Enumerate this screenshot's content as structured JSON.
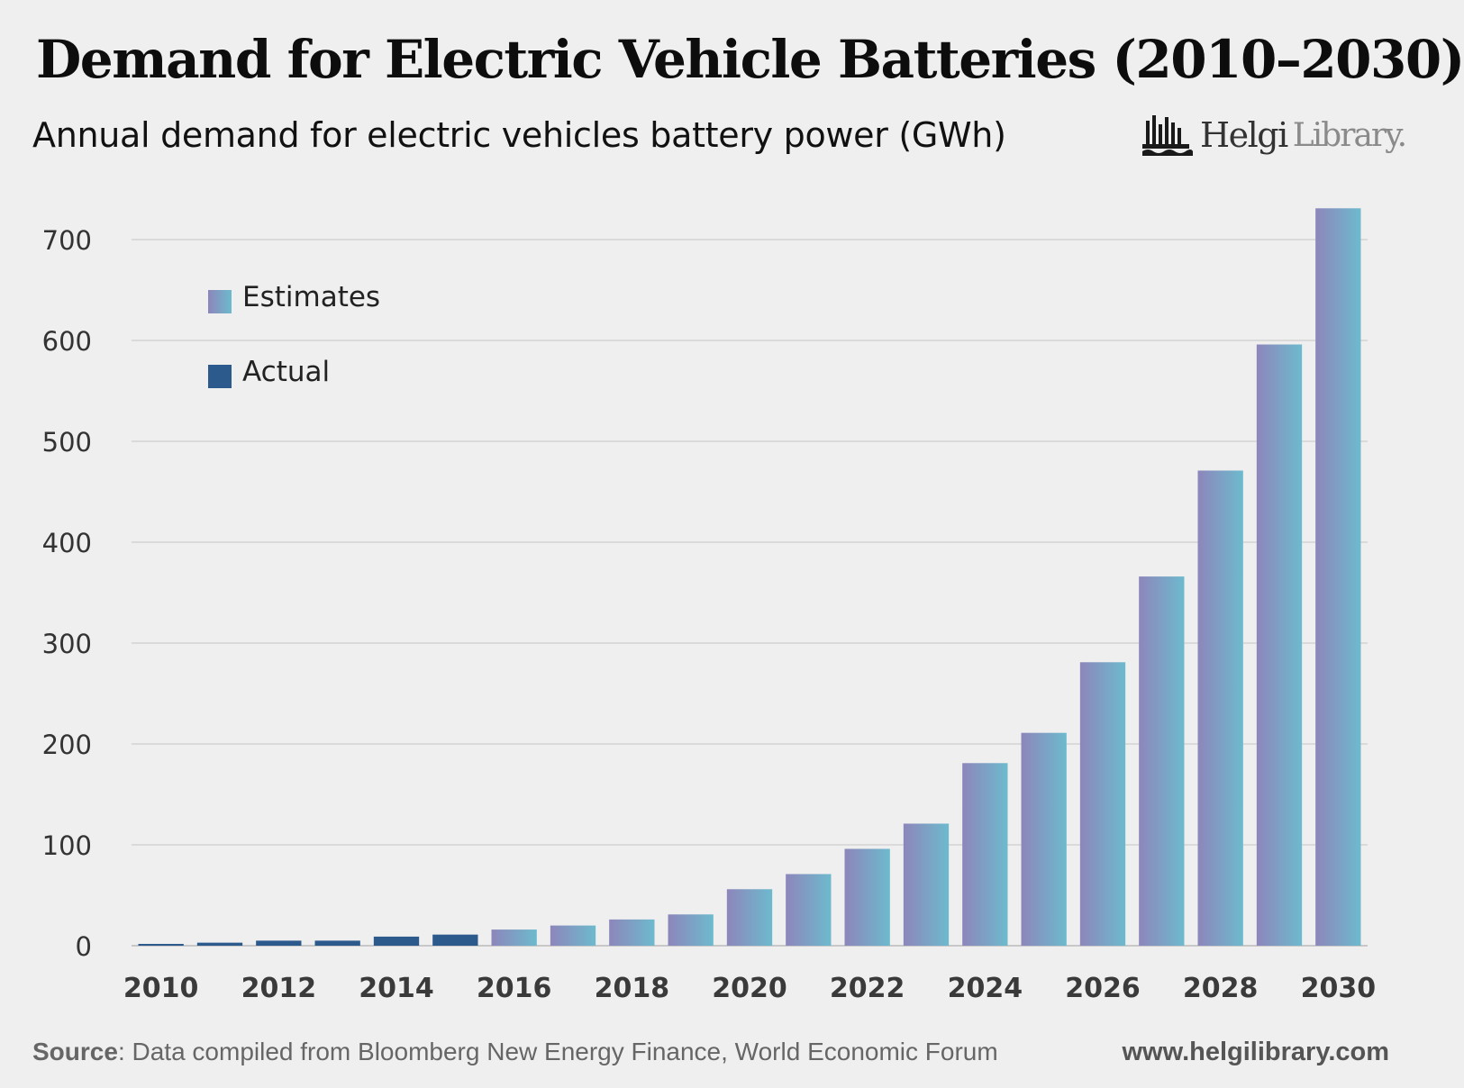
{
  "header": {
    "title": "Demand for Electric Vehicle Batteries (2010–2030)",
    "subtitle": "Annual demand for electric vehicles battery power (GWh)"
  },
  "brand": {
    "part1": "Helgi",
    "part2": "Library."
  },
  "footer": {
    "source_label": "Source",
    "source_text": ": Data compiled from Bloomberg New Energy Finance, World Economic Forum",
    "url": "www.helgilibrary.com"
  },
  "colors": {
    "actual": "#2c5a8c",
    "estimate_left": "#8d86bb",
    "estimate_right": "#6dbacd",
    "grid": "#d4d4d4",
    "background": "#efefef"
  },
  "chart_data": {
    "type": "bar",
    "title": "Demand for Electric Vehicle Batteries (2010–2030)",
    "ylabel": "Annual demand for electric vehicles battery power (GWh)",
    "ylim": [
      0,
      700
    ],
    "yticks": [
      0,
      100,
      200,
      300,
      400,
      500,
      600,
      700
    ],
    "xtick_labels": [
      "2010",
      "2012",
      "2014",
      "2016",
      "2018",
      "2020",
      "2022",
      "2024",
      "2026",
      "2028",
      "2030"
    ],
    "grid": true,
    "legend_position": "top-left",
    "categories": [
      "2010",
      "2011",
      "2012",
      "2013",
      "2014",
      "2015",
      "2016",
      "2017",
      "2018",
      "2019",
      "2020",
      "2021",
      "2022",
      "2023",
      "2024",
      "2025",
      "2026",
      "2027",
      "2028",
      "2029",
      "2030"
    ],
    "series": [
      {
        "name": "Actual",
        "values": [
          1,
          3,
          5,
          5,
          9,
          11,
          null,
          null,
          null,
          null,
          null,
          null,
          null,
          null,
          null,
          null,
          null,
          null,
          null,
          null,
          null
        ]
      },
      {
        "name": "Estimates",
        "values": [
          null,
          null,
          null,
          null,
          null,
          null,
          16,
          20,
          26,
          31,
          56,
          71,
          96,
          121,
          181,
          211,
          281,
          366,
          471,
          596,
          731
        ]
      }
    ]
  }
}
